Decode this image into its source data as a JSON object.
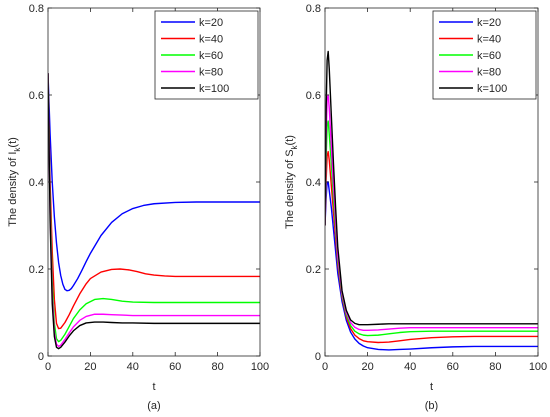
{
  "chart_data": [
    {
      "type": "line",
      "caption": "(a)",
      "xlabel": "t",
      "ylabel": "The density of I_k(t)",
      "ylabel_main": "The density of I",
      "ylabel_sub": "k",
      "ylabel_tail": "(t)",
      "xlim": [
        0,
        100
      ],
      "ylim": [
        0,
        0.8
      ],
      "xticks": [
        0,
        20,
        40,
        60,
        80,
        100
      ],
      "xtick_labels": [
        "0",
        "20",
        "40",
        "60",
        "80",
        "100"
      ],
      "yticks": [
        0,
        0.2,
        0.4,
        0.6,
        0.8
      ],
      "ytick_labels": [
        "0",
        "0.2",
        "0.4",
        "0.6",
        "0.8"
      ],
      "legend_position": "top-right",
      "series": [
        {
          "name": "k=20",
          "color": "#0000ff",
          "x": [
            0,
            1,
            2,
            3,
            4,
            5,
            6,
            7,
            8,
            9,
            10,
            11,
            12,
            14,
            16,
            18,
            20,
            25,
            30,
            35,
            40,
            45,
            50,
            60,
            70,
            80,
            90,
            100
          ],
          "y": [
            0.65,
            0.51,
            0.4,
            0.32,
            0.26,
            0.215,
            0.185,
            0.165,
            0.153,
            0.15,
            0.151,
            0.155,
            0.162,
            0.178,
            0.197,
            0.217,
            0.236,
            0.277,
            0.307,
            0.327,
            0.339,
            0.346,
            0.35,
            0.353,
            0.354,
            0.354,
            0.354,
            0.354
          ]
        },
        {
          "name": "k=40",
          "color": "#ff0000",
          "x": [
            0,
            1,
            2,
            3,
            4,
            5,
            6,
            8,
            10,
            12,
            15,
            18,
            20,
            25,
            30,
            34,
            38,
            42,
            46,
            50,
            55,
            60,
            70,
            80,
            90,
            100
          ],
          "y": [
            0.65,
            0.4,
            0.24,
            0.13,
            0.075,
            0.063,
            0.064,
            0.077,
            0.095,
            0.115,
            0.143,
            0.166,
            0.178,
            0.193,
            0.199,
            0.2,
            0.198,
            0.194,
            0.189,
            0.186,
            0.184,
            0.183,
            0.183,
            0.183,
            0.183,
            0.183
          ]
        },
        {
          "name": "k=60",
          "color": "#00ff00",
          "x": [
            0,
            1,
            2,
            3,
            4,
            5,
            6,
            8,
            10,
            12,
            15,
            18,
            22,
            26,
            30,
            35,
            40,
            50,
            60,
            70,
            80,
            90,
            100
          ],
          "y": [
            0.65,
            0.36,
            0.17,
            0.075,
            0.04,
            0.033,
            0.036,
            0.05,
            0.068,
            0.086,
            0.106,
            0.12,
            0.13,
            0.132,
            0.13,
            0.126,
            0.124,
            0.123,
            0.123,
            0.123,
            0.123,
            0.123,
            0.123
          ]
        },
        {
          "name": "k=80",
          "color": "#ff00ff",
          "x": [
            0,
            1,
            2,
            3,
            4,
            5,
            6,
            8,
            10,
            12,
            15,
            18,
            22,
            26,
            30,
            35,
            40,
            50,
            60,
            70,
            80,
            90,
            100
          ],
          "y": [
            0.65,
            0.33,
            0.14,
            0.055,
            0.027,
            0.022,
            0.025,
            0.038,
            0.053,
            0.067,
            0.082,
            0.091,
            0.096,
            0.096,
            0.095,
            0.094,
            0.093,
            0.093,
            0.093,
            0.093,
            0.093,
            0.093,
            0.093
          ]
        },
        {
          "name": "k=100",
          "color": "#000000",
          "x": [
            0,
            1,
            2,
            3,
            4,
            5,
            6,
            8,
            10,
            12,
            15,
            18,
            22,
            26,
            30,
            35,
            40,
            50,
            60,
            70,
            80,
            90,
            100
          ],
          "y": [
            0.65,
            0.31,
            0.12,
            0.045,
            0.02,
            0.017,
            0.02,
            0.032,
            0.046,
            0.058,
            0.07,
            0.076,
            0.078,
            0.078,
            0.077,
            0.076,
            0.076,
            0.075,
            0.075,
            0.075,
            0.075,
            0.075,
            0.075
          ]
        }
      ]
    },
    {
      "type": "line",
      "caption": "(b)",
      "xlabel": "t",
      "ylabel": "The density of S_k(t)",
      "ylabel_main": "The density of S",
      "ylabel_sub": "k",
      "ylabel_tail": "(t)",
      "xlim": [
        0,
        100
      ],
      "ylim": [
        0,
        0.8
      ],
      "xticks": [
        0,
        20,
        40,
        60,
        80,
        100
      ],
      "xtick_labels": [
        "0",
        "20",
        "40",
        "60",
        "80",
        "100"
      ],
      "yticks": [
        0,
        0.2,
        0.4,
        0.6,
        0.8
      ],
      "ytick_labels": [
        "0",
        "0.2",
        "0.4",
        "0.6",
        "0.8"
      ],
      "legend_position": "top-right",
      "series": [
        {
          "name": "k=20",
          "color": "#0000ff",
          "x": [
            0,
            0.5,
            1,
            1.5,
            2,
            3,
            4,
            5,
            6,
            8,
            10,
            12,
            14,
            16,
            18,
            20,
            25,
            30,
            35,
            40,
            50,
            60,
            70,
            80,
            90,
            100
          ],
          "y": [
            0.3,
            0.36,
            0.4,
            0.4,
            0.38,
            0.34,
            0.29,
            0.24,
            0.19,
            0.125,
            0.082,
            0.055,
            0.039,
            0.029,
            0.023,
            0.019,
            0.015,
            0.014,
            0.015,
            0.016,
            0.019,
            0.021,
            0.022,
            0.022,
            0.022,
            0.022
          ]
        },
        {
          "name": "k=40",
          "color": "#ff0000",
          "x": [
            0,
            0.5,
            1,
            1.5,
            2,
            3,
            4,
            5,
            6,
            8,
            10,
            12,
            14,
            16,
            18,
            20,
            25,
            30,
            35,
            40,
            50,
            60,
            70,
            80,
            90,
            100
          ],
          "y": [
            0.3,
            0.4,
            0.46,
            0.47,
            0.45,
            0.39,
            0.33,
            0.27,
            0.21,
            0.135,
            0.09,
            0.063,
            0.048,
            0.04,
            0.035,
            0.033,
            0.031,
            0.032,
            0.035,
            0.038,
            0.042,
            0.044,
            0.045,
            0.045,
            0.045,
            0.045
          ]
        },
        {
          "name": "k=60",
          "color": "#00ff00",
          "x": [
            0,
            0.5,
            1,
            1.5,
            2,
            3,
            4,
            5,
            6,
            8,
            10,
            12,
            14,
            16,
            18,
            20,
            25,
            30,
            35,
            40,
            50,
            60,
            70,
            80,
            90,
            100
          ],
          "y": [
            0.3,
            0.45,
            0.53,
            0.54,
            0.51,
            0.44,
            0.36,
            0.29,
            0.22,
            0.14,
            0.095,
            0.07,
            0.057,
            0.051,
            0.048,
            0.047,
            0.048,
            0.051,
            0.054,
            0.056,
            0.057,
            0.057,
            0.057,
            0.057,
            0.057,
            0.057
          ]
        },
        {
          "name": "k=80",
          "color": "#ff00ff",
          "x": [
            0,
            0.5,
            1,
            1.5,
            2,
            3,
            4,
            5,
            6,
            8,
            10,
            12,
            14,
            16,
            18,
            20,
            25,
            30,
            35,
            40,
            50,
            60,
            70,
            80,
            90,
            100
          ],
          "y": [
            0.3,
            0.5,
            0.59,
            0.6,
            0.57,
            0.48,
            0.39,
            0.31,
            0.23,
            0.145,
            0.1,
            0.077,
            0.066,
            0.061,
            0.059,
            0.059,
            0.06,
            0.062,
            0.064,
            0.065,
            0.065,
            0.065,
            0.065,
            0.065,
            0.065,
            0.065
          ]
        },
        {
          "name": "k=100",
          "color": "#000000",
          "x": [
            0,
            0.5,
            1,
            1.5,
            2,
            3,
            4,
            5,
            6,
            8,
            10,
            12,
            14,
            16,
            18,
            20,
            25,
            30,
            35,
            40,
            50,
            60,
            70,
            80,
            90,
            100
          ],
          "y": [
            0.3,
            0.56,
            0.68,
            0.7,
            0.66,
            0.55,
            0.44,
            0.34,
            0.25,
            0.15,
            0.105,
            0.083,
            0.075,
            0.072,
            0.072,
            0.072,
            0.073,
            0.074,
            0.074,
            0.074,
            0.074,
            0.074,
            0.074,
            0.074,
            0.074,
            0.074
          ]
        }
      ]
    }
  ]
}
